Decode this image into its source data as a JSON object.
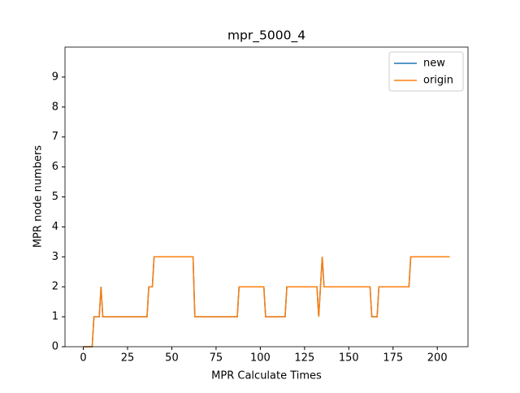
{
  "chart_data": {
    "type": "line",
    "title": "mpr_5000_4",
    "x_label": "MPR Calculate Times",
    "y_label": "MPR node numbers",
    "x": [
      0,
      1,
      2,
      3,
      4,
      5,
      6,
      7,
      8,
      9,
      10,
      11,
      12,
      13,
      14,
      15,
      16,
      17,
      18,
      19,
      20,
      21,
      22,
      23,
      24,
      25,
      26,
      27,
      28,
      29,
      30,
      31,
      32,
      33,
      34,
      35,
      36,
      37,
      38,
      39,
      40,
      41,
      42,
      43,
      44,
      45,
      46,
      47,
      48,
      49,
      50,
      51,
      52,
      53,
      54,
      55,
      56,
      57,
      58,
      59,
      60,
      61,
      62,
      63,
      64,
      65,
      66,
      67,
      68,
      69,
      70,
      71,
      72,
      73,
      74,
      75,
      76,
      77,
      78,
      79,
      80,
      81,
      82,
      83,
      84,
      85,
      86,
      87,
      88,
      89,
      90,
      91,
      92,
      93,
      94,
      95,
      96,
      97,
      98,
      99,
      100,
      101,
      102,
      103,
      104,
      105,
      106,
      107,
      108,
      109,
      110,
      111,
      112,
      113,
      114,
      115,
      116,
      117,
      118,
      119,
      120,
      121,
      122,
      123,
      124,
      125,
      126,
      127,
      128,
      129,
      130,
      131,
      132,
      133,
      134,
      135,
      136,
      137,
      138,
      139,
      140,
      141,
      142,
      143,
      144,
      145,
      146,
      147,
      148,
      149,
      150,
      151,
      152,
      153,
      154,
      155,
      156,
      157,
      158,
      159,
      160,
      161,
      162,
      163,
      164,
      165,
      166,
      167,
      168,
      169,
      170,
      171,
      172,
      173,
      174,
      175,
      176,
      177,
      178,
      179,
      180,
      181,
      182,
      183,
      184,
      185,
      186,
      187,
      188,
      189,
      190,
      191,
      192,
      193,
      194,
      195,
      196,
      197,
      198,
      199,
      200,
      201,
      202,
      203,
      204,
      205,
      206,
      207
    ],
    "series": [
      {
        "name": "new",
        "color": "#1f77b4",
        "values": [
          0,
          0,
          0,
          0,
          0,
          0,
          1,
          1,
          1,
          1,
          2,
          1,
          1,
          1,
          1,
          1,
          1,
          1,
          1,
          1,
          1,
          1,
          1,
          1,
          1,
          1,
          1,
          1,
          1,
          1,
          1,
          1,
          1,
          1,
          1,
          1,
          1,
          2,
          2,
          2,
          3,
          3,
          3,
          3,
          3,
          3,
          3,
          3,
          3,
          3,
          3,
          3,
          3,
          3,
          3,
          3,
          3,
          3,
          3,
          3,
          3,
          3,
          3,
          1,
          1,
          1,
          1,
          1,
          1,
          1,
          1,
          1,
          1,
          1,
          1,
          1,
          1,
          1,
          1,
          1,
          1,
          1,
          1,
          1,
          1,
          1,
          1,
          1,
          2,
          2,
          2,
          2,
          2,
          2,
          2,
          2,
          2,
          2,
          2,
          2,
          2,
          2,
          2,
          1,
          1,
          1,
          1,
          1,
          1,
          1,
          1,
          1,
          1,
          1,
          1,
          2,
          2,
          2,
          2,
          2,
          2,
          2,
          2,
          2,
          2,
          2,
          2,
          2,
          2,
          2,
          2,
          2,
          2,
          1,
          2,
          3,
          2,
          2,
          2,
          2,
          2,
          2,
          2,
          2,
          2,
          2,
          2,
          2,
          2,
          2,
          2,
          2,
          2,
          2,
          2,
          2,
          2,
          2,
          2,
          2,
          2,
          2,
          2,
          1,
          1,
          1,
          1,
          2,
          2,
          2,
          2,
          2,
          2,
          2,
          2,
          2,
          2,
          2,
          2,
          2,
          2,
          2,
          2,
          2,
          2,
          3,
          3,
          3,
          3,
          3,
          3,
          3,
          3,
          3,
          3,
          3,
          3,
          3,
          3,
          3,
          3,
          3,
          3,
          3,
          3,
          3,
          3,
          3
        ]
      },
      {
        "name": "origin",
        "color": "#ff7f0e",
        "values": [
          0,
          0,
          0,
          0,
          0,
          0,
          1,
          1,
          1,
          1,
          2,
          1,
          1,
          1,
          1,
          1,
          1,
          1,
          1,
          1,
          1,
          1,
          1,
          1,
          1,
          1,
          1,
          1,
          1,
          1,
          1,
          1,
          1,
          1,
          1,
          1,
          1,
          2,
          2,
          2,
          3,
          3,
          3,
          3,
          3,
          3,
          3,
          3,
          3,
          3,
          3,
          3,
          3,
          3,
          3,
          3,
          3,
          3,
          3,
          3,
          3,
          3,
          3,
          1,
          1,
          1,
          1,
          1,
          1,
          1,
          1,
          1,
          1,
          1,
          1,
          1,
          1,
          1,
          1,
          1,
          1,
          1,
          1,
          1,
          1,
          1,
          1,
          1,
          2,
          2,
          2,
          2,
          2,
          2,
          2,
          2,
          2,
          2,
          2,
          2,
          2,
          2,
          2,
          1,
          1,
          1,
          1,
          1,
          1,
          1,
          1,
          1,
          1,
          1,
          1,
          2,
          2,
          2,
          2,
          2,
          2,
          2,
          2,
          2,
          2,
          2,
          2,
          2,
          2,
          2,
          2,
          2,
          2,
          1,
          2,
          3,
          2,
          2,
          2,
          2,
          2,
          2,
          2,
          2,
          2,
          2,
          2,
          2,
          2,
          2,
          2,
          2,
          2,
          2,
          2,
          2,
          2,
          2,
          2,
          2,
          2,
          2,
          2,
          1,
          1,
          1,
          1,
          2,
          2,
          2,
          2,
          2,
          2,
          2,
          2,
          2,
          2,
          2,
          2,
          2,
          2,
          2,
          2,
          2,
          2,
          3,
          3,
          3,
          3,
          3,
          3,
          3,
          3,
          3,
          3,
          3,
          3,
          3,
          3,
          3,
          3,
          3,
          3,
          3,
          3,
          3,
          3,
          3
        ]
      }
    ],
    "xlim": [
      -10.35,
      217.35
    ],
    "ylim": [
      0,
      10
    ],
    "xticks": [
      0,
      25,
      50,
      75,
      100,
      125,
      150,
      175,
      200
    ],
    "yticks": [
      0,
      1,
      2,
      3,
      4,
      5,
      6,
      7,
      8,
      9
    ],
    "grid": false,
    "legend": "upper right"
  }
}
